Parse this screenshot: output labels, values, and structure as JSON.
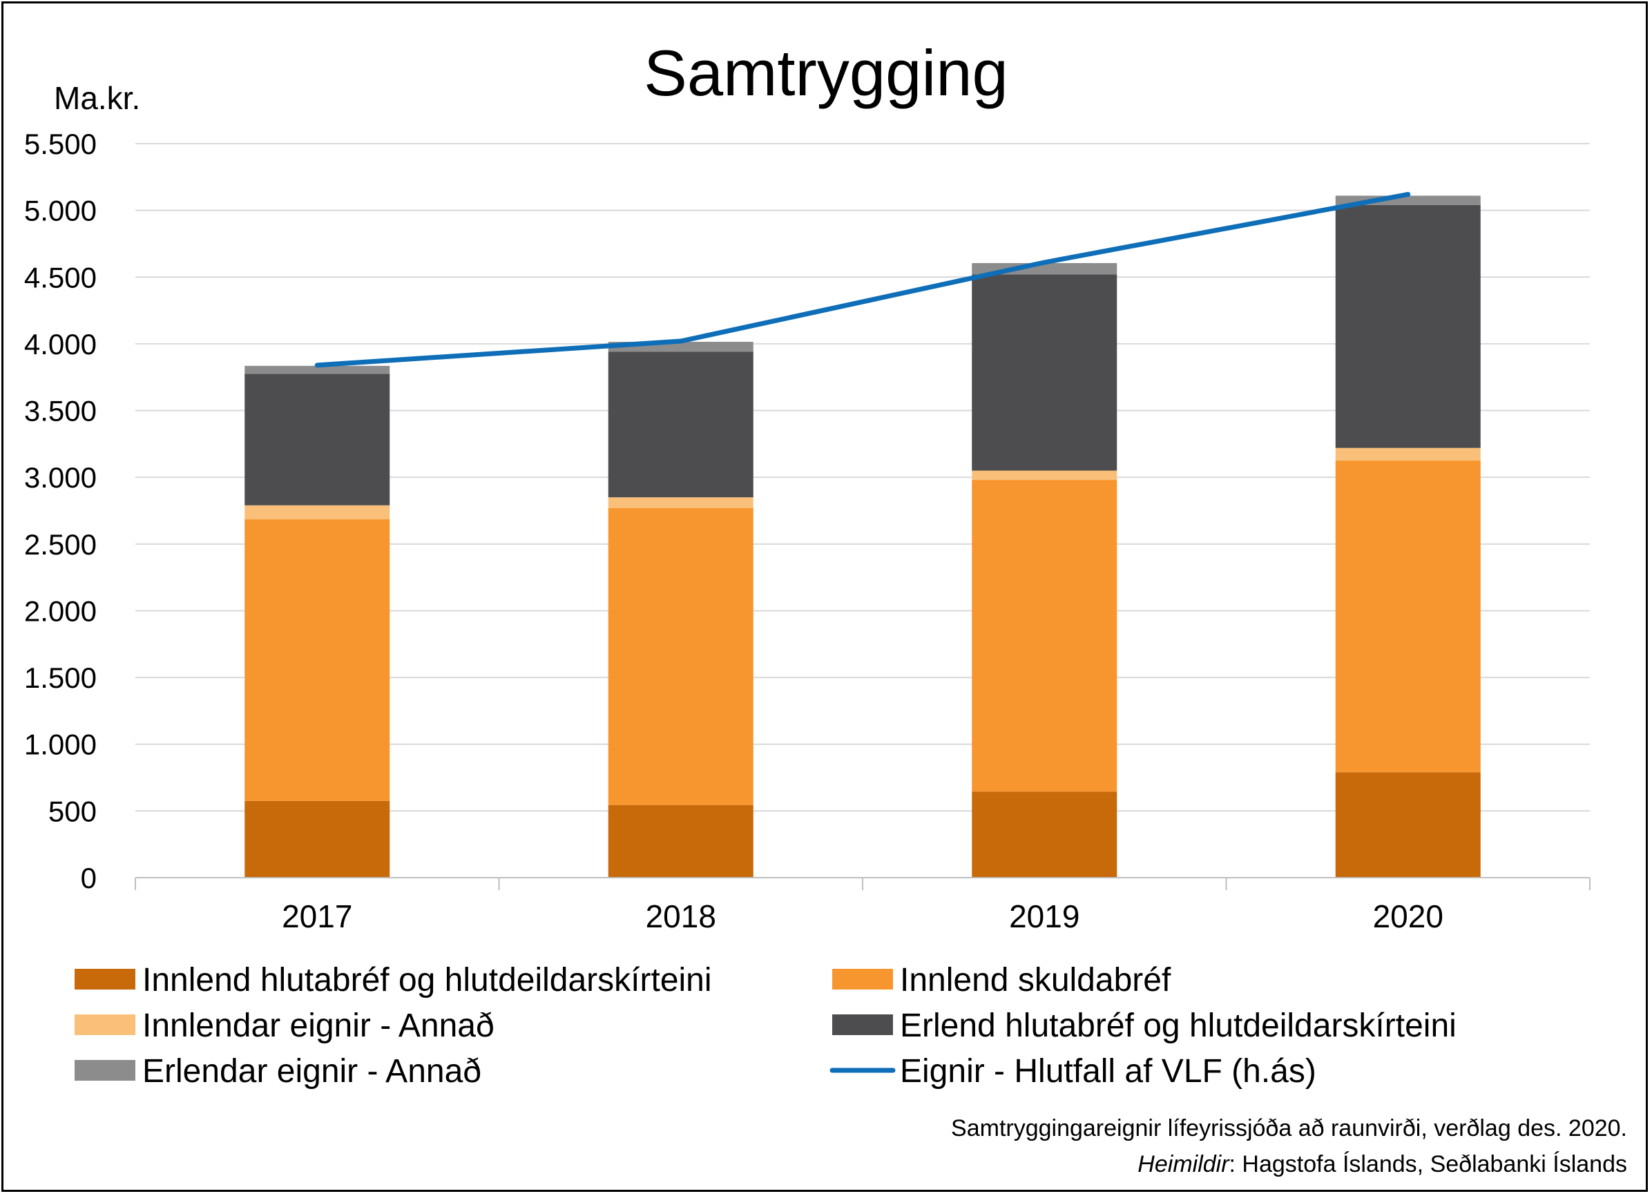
{
  "chart_data": {
    "type": "bar",
    "stacked": true,
    "title": "Samtrygging",
    "ylabel": "Ma.kr.",
    "ylim": [
      0,
      5500
    ],
    "yticks": [
      0,
      500,
      1000,
      1500,
      2000,
      2500,
      3000,
      3500,
      4000,
      4500,
      5000,
      5500
    ],
    "ytick_labels": [
      "0",
      "500",
      "1.000",
      "1.500",
      "2.000",
      "2.500",
      "3.000",
      "3.500",
      "4.000",
      "4.500",
      "5.000",
      "5.500"
    ],
    "categories": [
      "2017",
      "2018",
      "2019",
      "2020"
    ],
    "grid": true,
    "series": [
      {
        "name": "Innlend hlutabréf og hlutdeildarskírteini",
        "color": "#C8690A",
        "values": [
          575,
          545,
          645,
          790
        ]
      },
      {
        "name": "Innlend skuldabréf",
        "color": "#F7962E",
        "values": [
          2110,
          2225,
          2335,
          2335
        ]
      },
      {
        "name": "Innlendar eignir - Annað",
        "color": "#FAC07A",
        "values": [
          105,
          80,
          70,
          95
        ]
      },
      {
        "name": "Erlend hlutabréf og hlutdeildarskírteini",
        "color": "#4D4D4F",
        "values": [
          985,
          1090,
          1470,
          1820
        ]
      },
      {
        "name": "Erlendar eignir - Annað",
        "color": "#8C8C8C",
        "values": [
          60,
          75,
          85,
          70
        ]
      }
    ],
    "line_series": {
      "name": "Eignir - Hlutfall af VLF (h.ás)",
      "color": "#0E6EB8",
      "values": [
        3840,
        4020,
        4610,
        5120
      ]
    },
    "legend_position": "bottom",
    "footnote": "Samtryggingareignir lífeyrissjóða að raunvirði, verðlag des. 2020.",
    "source_label": "Heimildir",
    "source_text": ": Hagstofa Íslands, Seðlabanki Íslands"
  }
}
